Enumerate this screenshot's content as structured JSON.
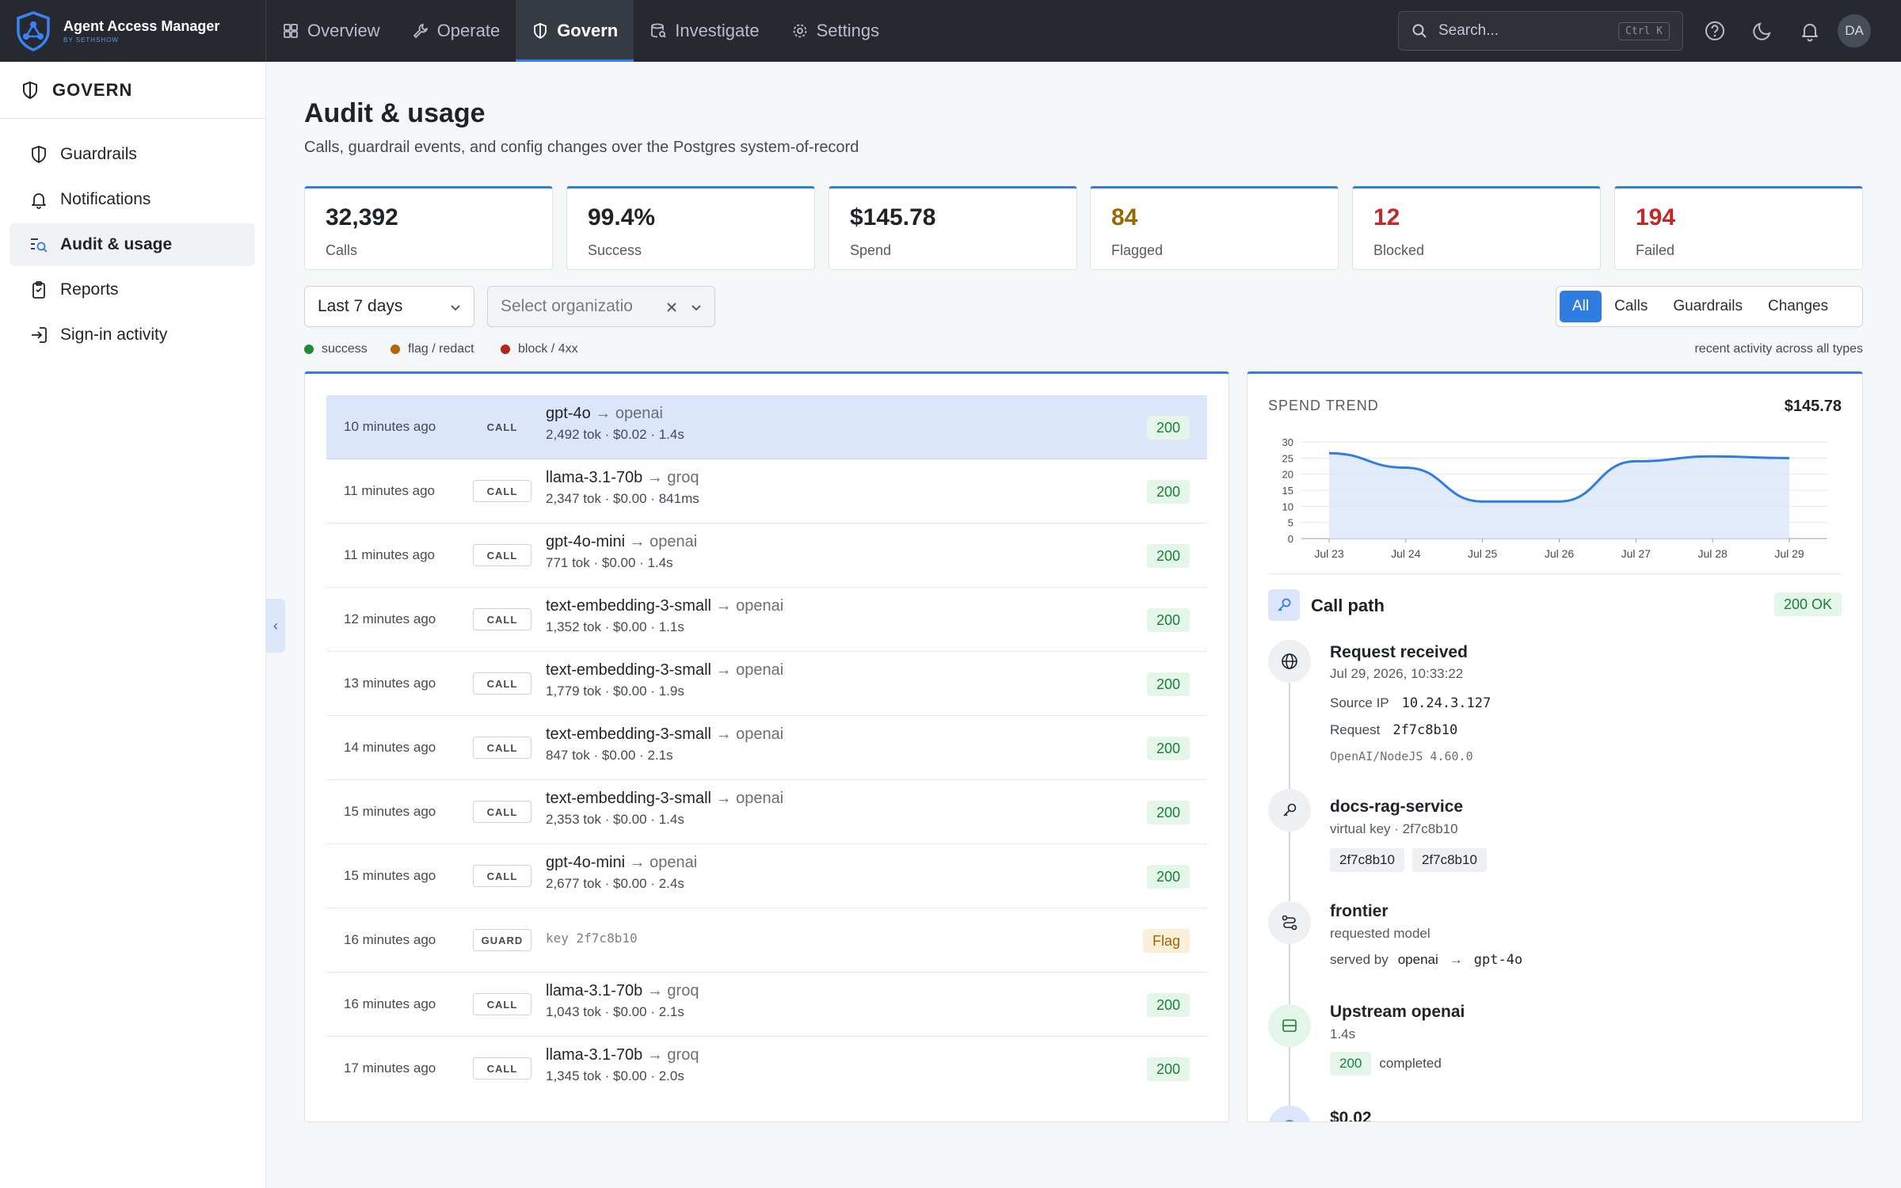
{
  "app": {
    "title": "Agent Access Manager",
    "subtitle": "BY SETHSHOW"
  },
  "nav": {
    "tabs": [
      {
        "label": "Overview",
        "icon": "grid-icon"
      },
      {
        "label": "Operate",
        "icon": "wrench-icon"
      },
      {
        "label": "Govern",
        "icon": "shield-icon",
        "active": true
      },
      {
        "label": "Investigate",
        "icon": "database-search-icon"
      },
      {
        "label": "Settings",
        "icon": "gear-icon"
      }
    ],
    "search_placeholder": "Search...",
    "search_shortcut": "Ctrl K",
    "avatar_initials": "DA"
  },
  "sidebar": {
    "title": "GOVERN",
    "items": [
      {
        "label": "Guardrails",
        "icon": "shield-icon"
      },
      {
        "label": "Notifications",
        "icon": "bell-icon"
      },
      {
        "label": "Audit & usage",
        "icon": "search-list-icon",
        "active": true
      },
      {
        "label": "Reports",
        "icon": "clipboard-icon"
      },
      {
        "label": "Sign-in activity",
        "icon": "sign-in-icon"
      }
    ]
  },
  "page": {
    "title": "Audit & usage",
    "subtitle": "Calls, guardrail events, and config changes over the Postgres system-of-record"
  },
  "stats": [
    {
      "value": "32,392",
      "label": "Calls",
      "color": "#1f2328"
    },
    {
      "value": "99.4%",
      "label": "Success",
      "color": "#1f2328"
    },
    {
      "value": "$145.78",
      "label": "Spend",
      "color": "#1f2328"
    },
    {
      "value": "84",
      "label": "Flagged",
      "color": "#9a6700"
    },
    {
      "value": "12",
      "label": "Blocked",
      "color": "#c62828"
    },
    {
      "value": "194",
      "label": "Failed",
      "color": "#c62828"
    }
  ],
  "filters": {
    "range": "Last 7 days",
    "org_placeholder": "Select organizatio",
    "segments": [
      "All",
      "Calls",
      "Guardrails",
      "Changes"
    ],
    "active_segment": "All"
  },
  "legend": [
    {
      "label": "success",
      "color": "#1f8a3b"
    },
    {
      "label": "flag / redact",
      "color": "#b8650a"
    },
    {
      "label": "block / 4xx",
      "color": "#b3261e"
    }
  ],
  "legend_note": "recent activity across all types",
  "activity": [
    {
      "time": "10 minutes ago",
      "kind": "CALL",
      "model": "gpt-4o",
      "provider": "openai",
      "meta": "2,492 tok · $0.02 · 1.4s",
      "status": "200",
      "selected": true
    },
    {
      "time": "11 minutes ago",
      "kind": "CALL",
      "model": "llama-3.1-70b",
      "provider": "groq",
      "meta": "2,347 tok · $0.00 · 841ms",
      "status": "200"
    },
    {
      "time": "11 minutes ago",
      "kind": "CALL",
      "model": "gpt-4o-mini",
      "provider": "openai",
      "meta": "771 tok · $0.00 · 1.4s",
      "status": "200"
    },
    {
      "time": "12 minutes ago",
      "kind": "CALL",
      "model": "text-embedding-3-small",
      "provider": "openai",
      "meta": "1,352 tok · $0.00 · 1.1s",
      "status": "200"
    },
    {
      "time": "13 minutes ago",
      "kind": "CALL",
      "model": "text-embedding-3-small",
      "provider": "openai",
      "meta": "1,779 tok · $0.00 · 1.9s",
      "status": "200"
    },
    {
      "time": "14 minutes ago",
      "kind": "CALL",
      "model": "text-embedding-3-small",
      "provider": "openai",
      "meta": "847 tok · $0.00 · 2.1s",
      "status": "200"
    },
    {
      "time": "15 minutes ago",
      "kind": "CALL",
      "model": "text-embedding-3-small",
      "provider": "openai",
      "meta": "2,353 tok · $0.00 · 1.4s",
      "status": "200"
    },
    {
      "time": "15 minutes ago",
      "kind": "CALL",
      "model": "gpt-4o-mini",
      "provider": "openai",
      "meta": "2,677 tok · $0.00 · 2.4s",
      "status": "200"
    },
    {
      "time": "16 minutes ago",
      "kind": "GUARD",
      "key": "key 2f7c8b10",
      "status": "Flag"
    },
    {
      "time": "16 minutes ago",
      "kind": "CALL",
      "model": "llama-3.1-70b",
      "provider": "groq",
      "meta": "1,043 tok · $0.00 · 2.1s",
      "status": "200"
    },
    {
      "time": "17 minutes ago",
      "kind": "CALL",
      "model": "llama-3.1-70b",
      "provider": "groq",
      "meta": "1,345 tok · $0.00 · 2.0s",
      "status": "200"
    }
  ],
  "chart_data": {
    "type": "area",
    "title": "SPEND TREND",
    "total": "$145.78",
    "categories": [
      "Jul 23",
      "Jul 24",
      "Jul 25",
      "Jul 26",
      "Jul 27",
      "Jul 28",
      "Jul 29"
    ],
    "values": [
      26.5,
      22,
      11.5,
      11.5,
      24,
      25.5,
      25
    ],
    "ylim": [
      0,
      30
    ],
    "yticks": [
      0,
      5,
      10,
      15,
      20,
      25,
      30
    ],
    "grid": true,
    "color": "#2f7de1"
  },
  "call_path": {
    "title": "Call path",
    "badge": "200 OK",
    "steps": {
      "request": {
        "title": "Request received",
        "time": "Jul 29, 2026, 10:33:22",
        "source_ip_label": "Source IP",
        "source_ip": "10.24.3.127",
        "request_label": "Request",
        "request_id": "2f7c8b10",
        "user_agent": "OpenAI/NodeJS 4.60.0"
      },
      "key": {
        "title": "docs-rag-service",
        "subtitle": "virtual key · 2f7c8b10",
        "chips": [
          "2f7c8b10",
          "2f7c8b10"
        ]
      },
      "route": {
        "title": "frontier",
        "subtitle": "requested model",
        "served_by_label": "served by",
        "served_provider": "openai",
        "arrow": "→",
        "served_model": "gpt-4o"
      },
      "upstream": {
        "title": "Upstream openai",
        "latency": "1.4s",
        "status": "200",
        "status_text": "completed"
      },
      "cost": {
        "title": "$0.02"
      }
    }
  }
}
